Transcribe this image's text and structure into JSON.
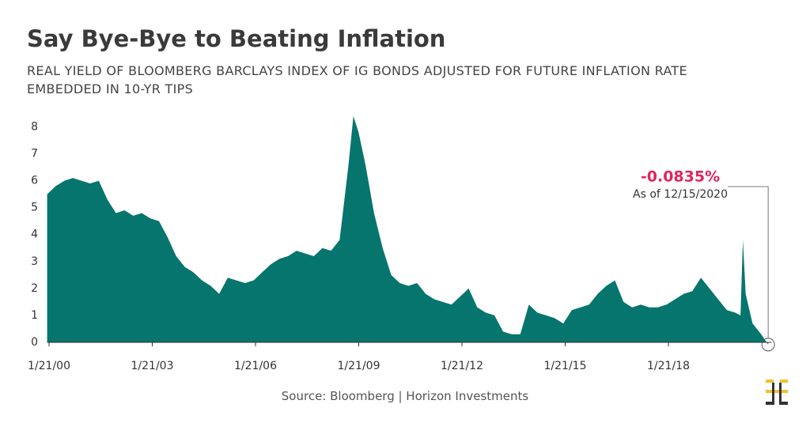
{
  "chart_data": {
    "type": "area",
    "title": "Say Bye-Bye to Beating Inflation",
    "subtitle": "REAL YIELD OF BLOOMBERG BARCLAYS INDEX OF IG BONDS ADJUSTED FOR FUTURE INFLATION RATE EMBEDDED IN 10-YR TIPS",
    "source": "Source: Bloomberg | Horizon Investments",
    "annotation": {
      "label": "-0.0835%",
      "note": "As of 12/15/2020"
    },
    "color": "#06756e",
    "x": [
      2000.0,
      2000.25,
      2000.5,
      2000.75,
      2001.0,
      2001.25,
      2001.5,
      2001.75,
      2002.0,
      2002.25,
      2002.5,
      2002.75,
      2003.0,
      2003.25,
      2003.5,
      2003.75,
      2004.0,
      2004.25,
      2004.5,
      2004.75,
      2005.0,
      2005.25,
      2005.5,
      2005.75,
      2006.0,
      2006.25,
      2006.5,
      2006.75,
      2007.0,
      2007.25,
      2007.5,
      2007.75,
      2008.0,
      2008.25,
      2008.5,
      2008.75,
      2008.9,
      2009.05,
      2009.25,
      2009.5,
      2009.75,
      2010.0,
      2010.25,
      2010.5,
      2010.75,
      2011.0,
      2011.25,
      2011.5,
      2011.75,
      2012.0,
      2012.25,
      2012.5,
      2012.75,
      2013.0,
      2013.25,
      2013.5,
      2013.75,
      2014.0,
      2014.25,
      2014.5,
      2014.75,
      2015.0,
      2015.25,
      2015.5,
      2015.75,
      2016.0,
      2016.25,
      2016.5,
      2016.75,
      2017.0,
      2017.25,
      2017.5,
      2017.75,
      2018.0,
      2018.25,
      2018.5,
      2018.75,
      2019.0,
      2019.25,
      2019.5,
      2019.75,
      2020.0,
      2020.15,
      2020.22,
      2020.3,
      2020.5,
      2020.75,
      2020.955
    ],
    "values": [
      5.5,
      5.8,
      6.0,
      6.1,
      6.0,
      5.9,
      6.0,
      5.3,
      4.8,
      4.9,
      4.7,
      4.8,
      4.6,
      4.5,
      3.9,
      3.2,
      2.8,
      2.6,
      2.3,
      2.1,
      1.8,
      2.4,
      2.3,
      2.2,
      2.3,
      2.6,
      2.9,
      3.1,
      3.2,
      3.4,
      3.3,
      3.2,
      3.5,
      3.4,
      3.8,
      6.5,
      8.4,
      7.8,
      6.6,
      4.8,
      3.5,
      2.5,
      2.2,
      2.1,
      2.2,
      1.8,
      1.6,
      1.5,
      1.4,
      1.7,
      2.0,
      1.3,
      1.1,
      1.0,
      0.4,
      0.3,
      0.3,
      1.4,
      1.1,
      1.0,
      0.9,
      0.7,
      1.2,
      1.3,
      1.4,
      1.8,
      2.1,
      2.3,
      1.5,
      1.3,
      1.4,
      1.3,
      1.3,
      1.4,
      1.6,
      1.8,
      1.9,
      2.4,
      2.0,
      1.6,
      1.2,
      1.1,
      1.0,
      3.8,
      1.8,
      0.7,
      0.3,
      -0.0835
    ],
    "xlim": [
      2000.0,
      2021.0
    ],
    "xticks": [
      {
        "value": 2000.055,
        "label": "1/21/00"
      },
      {
        "value": 2003.055,
        "label": "1/21/03"
      },
      {
        "value": 2006.055,
        "label": "1/21/06"
      },
      {
        "value": 2009.055,
        "label": "1/21/09"
      },
      {
        "value": 2012.055,
        "label": "1/21/12"
      },
      {
        "value": 2015.055,
        "label": "1/21/15"
      },
      {
        "value": 2018.055,
        "label": "1/21/18"
      }
    ],
    "ylim": [
      0,
      8.6
    ],
    "yticks": [
      0,
      1,
      2,
      3,
      4,
      5,
      6,
      7,
      8
    ]
  }
}
